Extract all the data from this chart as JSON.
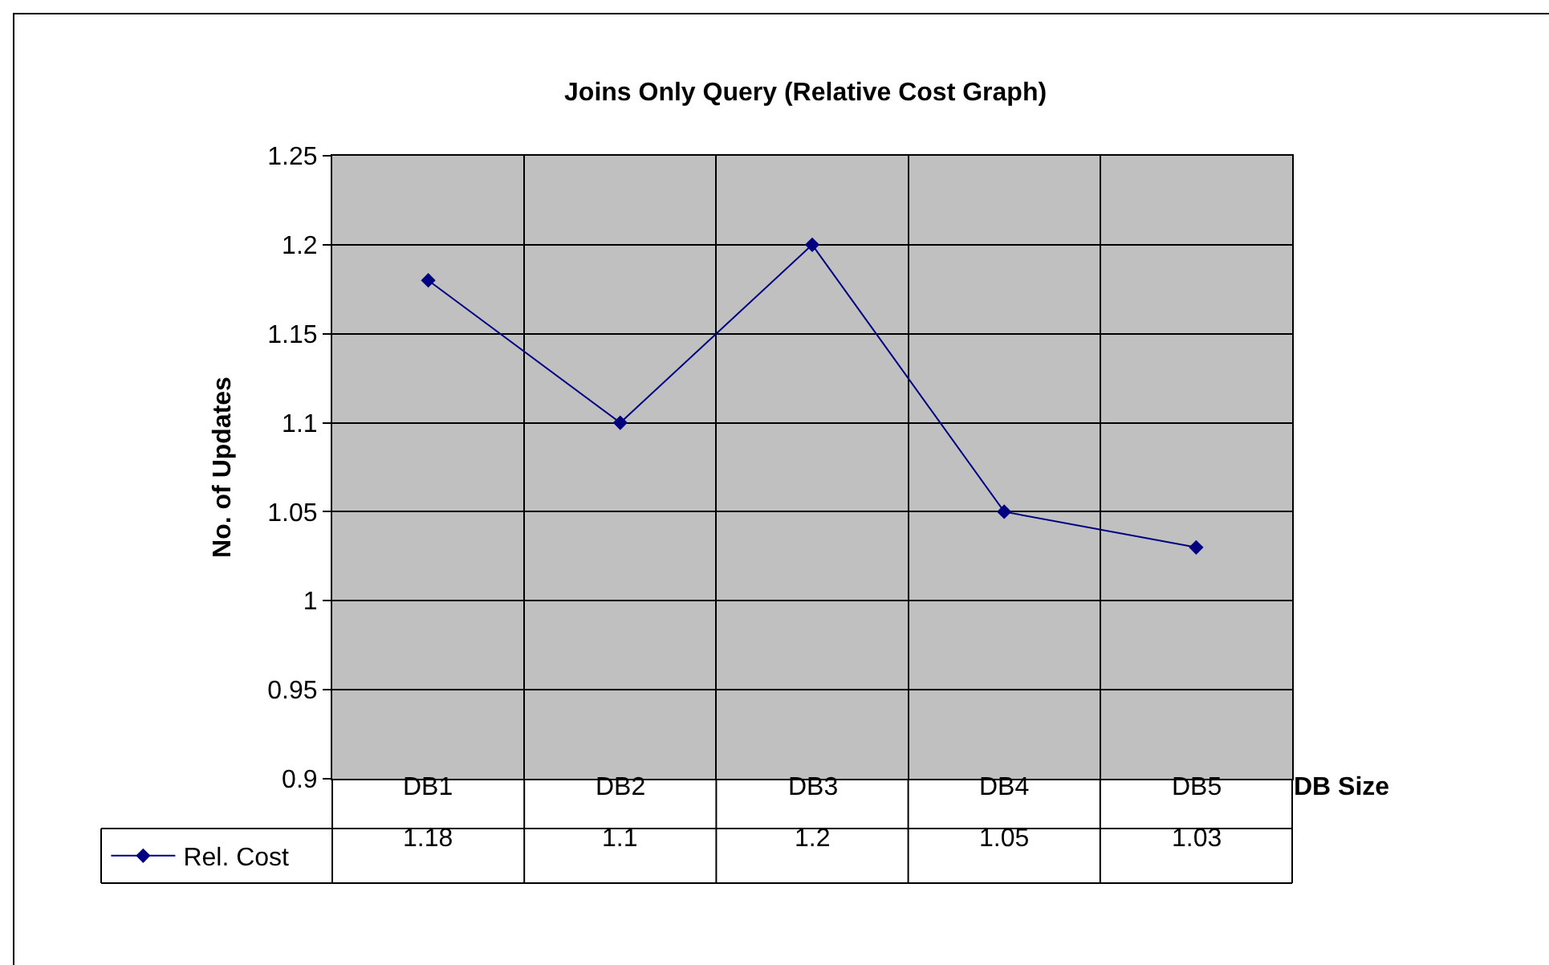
{
  "chart_data": {
    "type": "line",
    "title": "Joins Only Query (Relative Cost Graph)",
    "xlabel": "DB Size",
    "ylabel": "No. of Updates",
    "categories": [
      "DB1",
      "DB2",
      "DB3",
      "DB4",
      "DB5"
    ],
    "series": [
      {
        "name": "Rel. Cost",
        "color": "#000080",
        "values": [
          1.18,
          1.1,
          1.2,
          1.05,
          1.03
        ]
      }
    ],
    "ylim": [
      0.9,
      1.25
    ],
    "yticks": [
      0.9,
      0.95,
      1,
      1.05,
      1.1,
      1.15,
      1.2,
      1.25
    ],
    "grid": true,
    "legend": "bottom left",
    "marker": "diamond",
    "line_style": "solid",
    "data_labels": true
  }
}
